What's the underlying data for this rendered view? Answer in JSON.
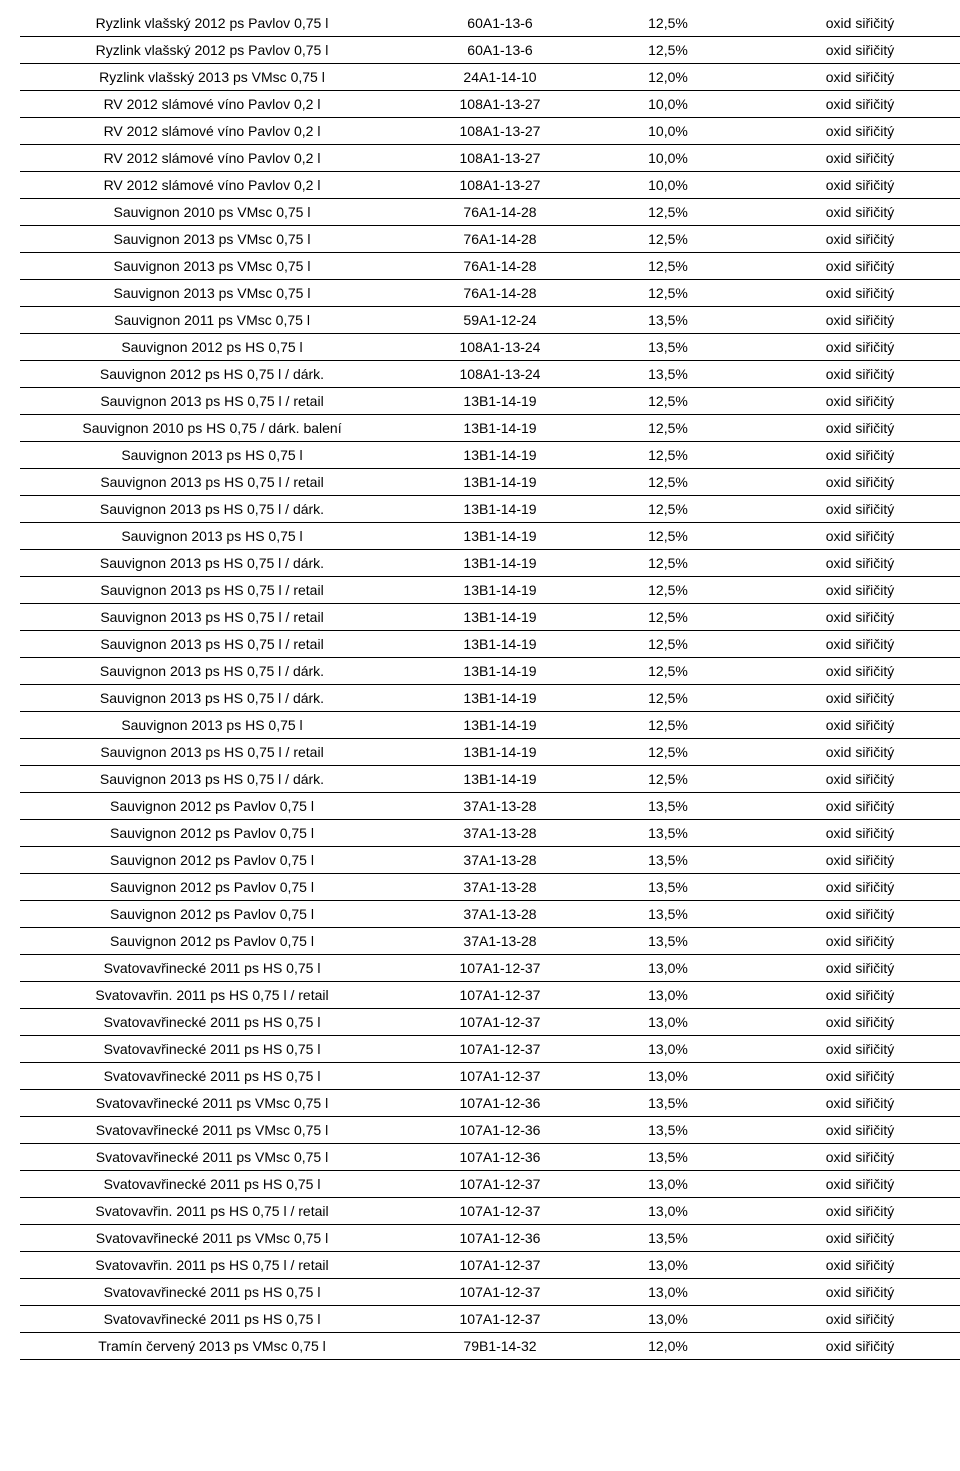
{
  "table": {
    "text_color": "#000000",
    "border_color": "#000000",
    "background_color": "#ffffff",
    "font_size": 14,
    "columns": [
      {
        "key": "name",
        "align": "center",
        "width_pct": 40
      },
      {
        "key": "code",
        "align": "center",
        "width_pct": 20
      },
      {
        "key": "pct",
        "align": "center",
        "width_pct": 15
      },
      {
        "key": "note",
        "align": "center",
        "width_pct": 25
      }
    ],
    "rows": [
      {
        "name": "Ryzlink vlašský 2012 ps Pavlov 0,75 l",
        "code": "60A1-13-6",
        "pct": "12,5%",
        "note": "oxid siřičitý"
      },
      {
        "name": "Ryzlink vlašský 2012 ps Pavlov 0,75 l",
        "code": "60A1-13-6",
        "pct": "12,5%",
        "note": "oxid siřičitý"
      },
      {
        "name": "Ryzlink vlašský 2013 ps VMsc 0,75 l",
        "code": "24A1-14-10",
        "pct": "12,0%",
        "note": "oxid siřičitý"
      },
      {
        "name": "RV 2012 slámové víno Pavlov 0,2 l",
        "code": "108A1-13-27",
        "pct": "10,0%",
        "note": "oxid siřičitý"
      },
      {
        "name": "RV 2012 slámové víno Pavlov 0,2 l",
        "code": "108A1-13-27",
        "pct": "10,0%",
        "note": "oxid siřičitý"
      },
      {
        "name": "RV 2012 slámové víno Pavlov 0,2 l",
        "code": "108A1-13-27",
        "pct": "10,0%",
        "note": "oxid siřičitý"
      },
      {
        "name": "RV 2012 slámové víno Pavlov 0,2 l",
        "code": "108A1-13-27",
        "pct": "10,0%",
        "note": "oxid siřičitý"
      },
      {
        "name": "Sauvignon 2010 ps  VMsc 0,75 l",
        "code": "76A1-14-28",
        "pct": "12,5%",
        "note": "oxid siřičitý"
      },
      {
        "name": "Sauvignon 2013 ps  VMsc 0,75 l",
        "code": "76A1-14-28",
        "pct": "12,5%",
        "note": "oxid siřičitý"
      },
      {
        "name": "Sauvignon 2013 ps  VMsc 0,75 l",
        "code": "76A1-14-28",
        "pct": "12,5%",
        "note": "oxid siřičitý"
      },
      {
        "name": "Sauvignon 2013 ps  VMsc 0,75 l",
        "code": "76A1-14-28",
        "pct": "12,5%",
        "note": "oxid siřičitý"
      },
      {
        "name": "Sauvignon 2011 ps  VMsc 0,75 l",
        "code": "59A1-12-24",
        "pct": "13,5%",
        "note": "oxid siřičitý"
      },
      {
        "name": "Sauvignon 2012 ps HS 0,75 l",
        "code": "108A1-13-24",
        "pct": "13,5%",
        "note": "oxid siřičitý"
      },
      {
        "name": "Sauvignon 2012 ps HS 0,75 l / dárk.",
        "code": "108A1-13-24",
        "pct": "13,5%",
        "note": "oxid siřičitý"
      },
      {
        "name": "Sauvignon 2013 ps HS 0,75 l / retail",
        "code": "13B1-14-19",
        "pct": "12,5%",
        "note": "oxid siřičitý"
      },
      {
        "name": "Sauvignon 2010 ps HS 0,75 / dárk. balení",
        "code": "13B1-14-19",
        "pct": "12,5%",
        "note": "oxid siřičitý"
      },
      {
        "name": "Sauvignon 2013 ps HS 0,75 l",
        "code": "13B1-14-19",
        "pct": "12,5%",
        "note": "oxid siřičitý"
      },
      {
        "name": "Sauvignon 2013 ps HS 0,75 l / retail",
        "code": "13B1-14-19",
        "pct": "12,5%",
        "note": "oxid siřičitý"
      },
      {
        "name": "Sauvignon 2013 ps HS 0,75 l / dárk.",
        "code": "13B1-14-19",
        "pct": "12,5%",
        "note": "oxid siřičitý"
      },
      {
        "name": "Sauvignon 2013 ps HS 0,75 l",
        "code": "13B1-14-19",
        "pct": "12,5%",
        "note": "oxid siřičitý"
      },
      {
        "name": "Sauvignon 2013 ps HS 0,75 l / dárk.",
        "code": "13B1-14-19",
        "pct": "12,5%",
        "note": "oxid siřičitý"
      },
      {
        "name": "Sauvignon 2013 ps HS 0,75 l / retail",
        "code": "13B1-14-19",
        "pct": "12,5%",
        "note": "oxid siřičitý"
      },
      {
        "name": "Sauvignon 2013 ps HS 0,75 l / retail",
        "code": "13B1-14-19",
        "pct": "12,5%",
        "note": "oxid siřičitý"
      },
      {
        "name": "Sauvignon 2013 ps HS 0,75 l / retail",
        "code": "13B1-14-19",
        "pct": "12,5%",
        "note": "oxid siřičitý"
      },
      {
        "name": "Sauvignon 2013 ps HS 0,75 l / dárk.",
        "code": "13B1-14-19",
        "pct": "12,5%",
        "note": "oxid siřičitý"
      },
      {
        "name": "Sauvignon 2013 ps HS 0,75 l / dárk.",
        "code": "13B1-14-19",
        "pct": "12,5%",
        "note": "oxid siřičitý"
      },
      {
        "name": "Sauvignon 2013 ps HS 0,75 l",
        "code": "13B1-14-19",
        "pct": "12,5%",
        "note": "oxid siřičitý"
      },
      {
        "name": "Sauvignon 2013 ps HS 0,75 l / retail",
        "code": "13B1-14-19",
        "pct": "12,5%",
        "note": "oxid siřičitý"
      },
      {
        "name": "Sauvignon 2013 ps HS 0,75 l / dárk.",
        "code": "13B1-14-19",
        "pct": "12,5%",
        "note": "oxid siřičitý"
      },
      {
        "name": "Sauvignon 2012 ps Pavlov 0,75 l",
        "code": "37A1-13-28",
        "pct": "13,5%",
        "note": "oxid siřičitý"
      },
      {
        "name": "Sauvignon 2012 ps Pavlov 0,75 l",
        "code": "37A1-13-28",
        "pct": "13,5%",
        "note": "oxid siřičitý"
      },
      {
        "name": "Sauvignon 2012 ps Pavlov 0,75 l",
        "code": "37A1-13-28",
        "pct": "13,5%",
        "note": "oxid siřičitý"
      },
      {
        "name": "Sauvignon 2012 ps Pavlov 0,75 l",
        "code": "37A1-13-28",
        "pct": "13,5%",
        "note": "oxid siřičitý"
      },
      {
        "name": "Sauvignon 2012 ps Pavlov 0,75 l",
        "code": "37A1-13-28",
        "pct": "13,5%",
        "note": "oxid siřičitý"
      },
      {
        "name": "Sauvignon 2012 ps Pavlov 0,75 l",
        "code": "37A1-13-28",
        "pct": "13,5%",
        "note": "oxid siřičitý"
      },
      {
        "name": "Svatovavřinecké 2011 ps HS 0,75 l",
        "code": "107A1-12-37",
        "pct": "13,0%",
        "note": "oxid siřičitý"
      },
      {
        "name": "Svatovavřin. 2011 ps HS 0,75 l / retail",
        "code": "107A1-12-37",
        "pct": "13,0%",
        "note": "oxid siřičitý"
      },
      {
        "name": "Svatovavřinecké 2011 ps HS 0,75 l",
        "code": "107A1-12-37",
        "pct": "13,0%",
        "note": "oxid siřičitý"
      },
      {
        "name": "Svatovavřinecké 2011 ps HS 0,75 l",
        "code": "107A1-12-37",
        "pct": "13,0%",
        "note": "oxid siřičitý"
      },
      {
        "name": "Svatovavřinecké 2011 ps HS 0,75 l",
        "code": "107A1-12-37",
        "pct": "13,0%",
        "note": "oxid siřičitý"
      },
      {
        "name": "Svatovavřinecké 2011 ps VMsc 0,75 l",
        "code": "107A1-12-36",
        "pct": "13,5%",
        "note": "oxid siřičitý"
      },
      {
        "name": "Svatovavřinecké 2011 ps VMsc 0,75 l",
        "code": "107A1-12-36",
        "pct": "13,5%",
        "note": "oxid siřičitý"
      },
      {
        "name": "Svatovavřinecké 2011 ps VMsc 0,75 l",
        "code": "107A1-12-36",
        "pct": "13,5%",
        "note": "oxid siřičitý"
      },
      {
        "name": "Svatovavřinecké 2011 ps HS 0,75 l",
        "code": "107A1-12-37",
        "pct": "13,0%",
        "note": "oxid siřičitý"
      },
      {
        "name": "Svatovavřin. 2011 ps HS 0,75 l / retail",
        "code": "107A1-12-37",
        "pct": "13,0%",
        "note": "oxid siřičitý"
      },
      {
        "name": "Svatovavřinecké 2011 ps VMsc 0,75 l",
        "code": "107A1-12-36",
        "pct": "13,5%",
        "note": "oxid siřičitý"
      },
      {
        "name": "Svatovavřin. 2011 ps HS 0,75 l / retail",
        "code": "107A1-12-37",
        "pct": "13,0%",
        "note": "oxid siřičitý"
      },
      {
        "name": "Svatovavřinecké 2011 ps HS 0,75 l",
        "code": "107A1-12-37",
        "pct": "13,0%",
        "note": "oxid siřičitý"
      },
      {
        "name": "Svatovavřinecké 2011 ps HS 0,75 l",
        "code": "107A1-12-37",
        "pct": "13,0%",
        "note": "oxid siřičitý"
      },
      {
        "name": "Tramín červený 2013 ps VMsc 0,75 l",
        "code": "79B1-14-32",
        "pct": "12,0%",
        "note": "oxid siřičitý"
      }
    ]
  }
}
